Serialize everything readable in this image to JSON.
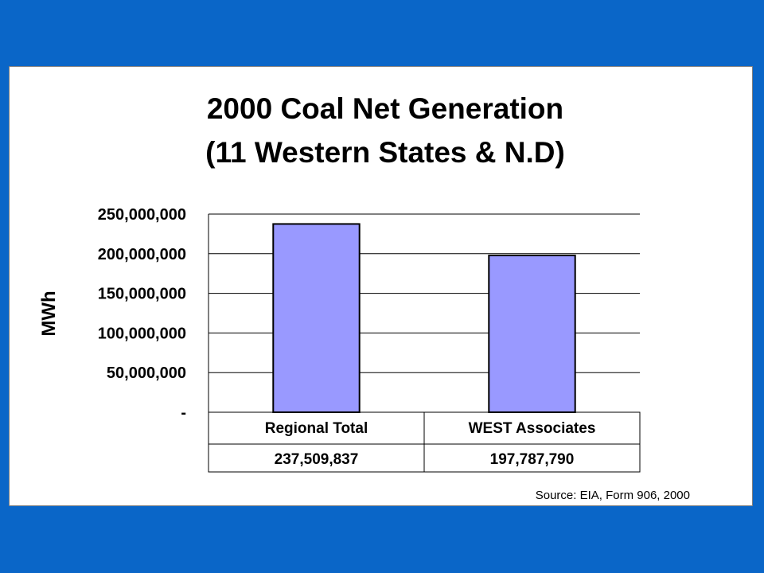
{
  "chart_data": {
    "type": "bar",
    "title_lines": [
      "2000 Coal Net Generation",
      "(11 Western States & N.D)"
    ],
    "ylabel": "MWh",
    "categories": [
      "Regional Total",
      "WEST Associates"
    ],
    "values": [
      237509837,
      197787790
    ],
    "value_labels": [
      "237,509,837",
      "197,787,790"
    ],
    "ylim": [
      0,
      250000000
    ],
    "yticks": [
      0,
      50000000,
      100000000,
      150000000,
      200000000,
      250000000
    ],
    "ytick_labels": [
      "-",
      "50,000,000",
      "100,000,000",
      "150,000,000",
      "200,000,000",
      "250,000,000"
    ],
    "grid": true,
    "bar_color": "#9999ff",
    "data_table": true
  },
  "source_note": "Source: EIA, Form 906, 2000"
}
